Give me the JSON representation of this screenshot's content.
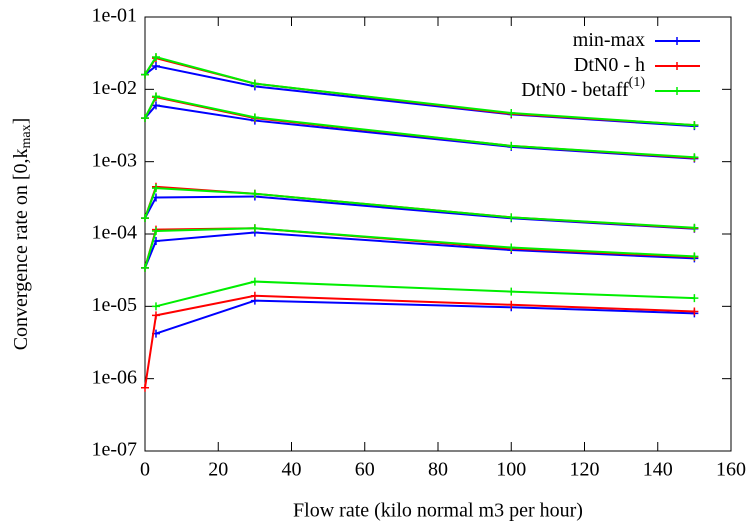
{
  "chart_data": {
    "type": "line",
    "xlabel": "Flow rate (kilo normal m3 per hour)",
    "ylabel": {
      "text": "Convergence rate on [0,k",
      "sub": "max",
      "suffix": "]"
    },
    "x": [
      0,
      3,
      30,
      100,
      150
    ],
    "series": [
      {
        "name": "min-max",
        "color": "#0000ff",
        "values": [
          [
            0.016,
            0.021,
            0.011,
            0.0045,
            0.0031
          ],
          [
            0.004,
            0.006,
            0.0037,
            0.0016,
            0.0011
          ],
          [
            0.000166,
            0.00032,
            0.00033,
            0.000165,
            0.000118
          ],
          [
            3.4e-05,
            8e-05,
            0.000105,
            6e-05,
            4.6e-05
          ],
          [
            null,
            4.2e-06,
            1.2e-05,
            9.7e-06,
            8e-06
          ]
        ]
      },
      {
        "name": "DtN0 - h",
        "color": "#ff0000",
        "values": [
          [
            0.016,
            0.027,
            0.012,
            0.0046,
            0.0032
          ],
          [
            0.004,
            0.0078,
            0.004,
            0.00165,
            0.00113
          ],
          [
            0.000166,
            0.00045,
            0.00036,
            0.00017,
            0.00012
          ],
          [
            3.4e-05,
            0.000115,
            0.00012,
            6.3e-05,
            4.8e-05
          ],
          [
            7.5e-07,
            7.5e-06,
            1.4e-05,
            1.05e-05,
            8.5e-06
          ]
        ]
      },
      {
        "name": "DtN0 - betaff",
        "name_sup": "(1)",
        "color": "#00ee00",
        "values": [
          [
            0.016,
            0.028,
            0.012,
            0.0047,
            0.0032
          ],
          [
            0.004,
            0.008,
            0.0041,
            0.00165,
            0.00115
          ],
          [
            0.000166,
            0.00043,
            0.00036,
            0.00017,
            0.000122
          ],
          [
            3.4e-05,
            0.00011,
            0.00012,
            6.5e-05,
            4.9e-05
          ],
          [
            null,
            1e-05,
            2.2e-05,
            1.6e-05,
            1.3e-05
          ]
        ]
      }
    ],
    "xlim": [
      0,
      160
    ],
    "xticks": [
      0,
      20,
      40,
      60,
      80,
      100,
      120,
      140,
      160
    ],
    "ylim": [
      1e-07,
      0.1
    ],
    "log_y": true,
    "yticks": [
      {
        "value": 1e-07,
        "label": "1e-07"
      },
      {
        "value": 1e-06,
        "label": "1e-06"
      },
      {
        "value": 1e-05,
        "label": "1e-05"
      },
      {
        "value": 0.0001,
        "label": "1e-04"
      },
      {
        "value": 0.001,
        "label": "1e-03"
      },
      {
        "value": 0.01,
        "label": "1e-02"
      },
      {
        "value": 0.1,
        "label": "1e-01"
      }
    ],
    "legend": "top-right"
  }
}
